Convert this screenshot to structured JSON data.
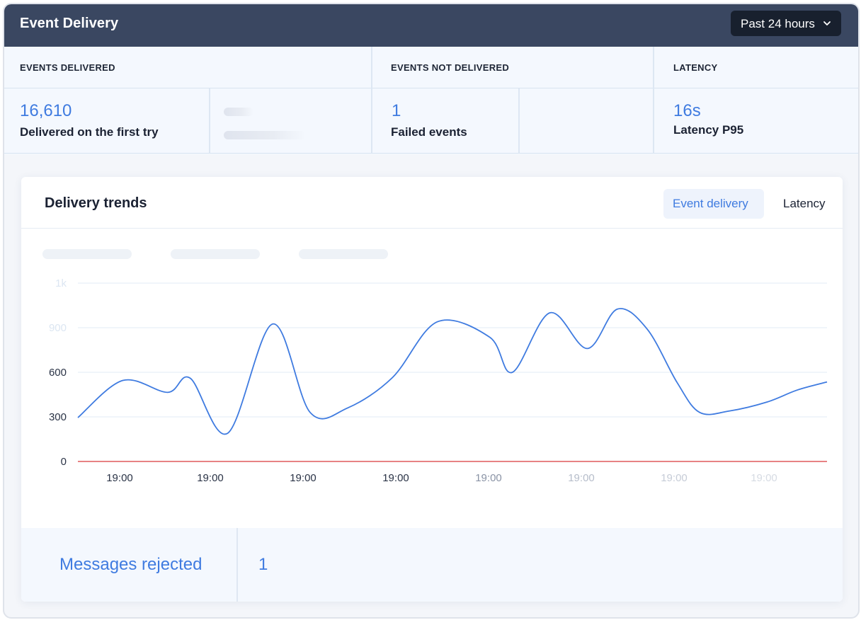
{
  "header": {
    "title": "Event Delivery",
    "time_range": "Past 24 hours"
  },
  "summary": {
    "delivered": {
      "label": "EVENTS DELIVERED",
      "value": "16,610",
      "caption": "Delivered on the first try"
    },
    "not_delivered": {
      "label": "EVENTS NOT DELIVERED",
      "value": "1",
      "caption": "Failed events"
    },
    "latency": {
      "label": "LATENCY",
      "value": "16s",
      "caption": "Latency P95"
    }
  },
  "trends": {
    "title": "Delivery trends",
    "tabs": [
      "Event delivery",
      "Latency"
    ],
    "active_tab": "Event delivery"
  },
  "rejected": {
    "label": "Messages rejected",
    "value": "1"
  },
  "chart_data": {
    "type": "line",
    "x_tick_labels": [
      "19:00",
      "19:00",
      "19:00",
      "19:00",
      "19:00",
      "19:00",
      "19:00",
      "19:00"
    ],
    "y_tick_labels": [
      "0",
      "300",
      "600",
      "900",
      "1k"
    ],
    "ylim": [
      0,
      1200
    ],
    "grid": true,
    "series": [
      {
        "color": "#3f7be0",
        "x": [
          0,
          0.06,
          0.12,
          0.15,
          0.2,
          0.26,
          0.31,
          0.36,
          0.42,
          0.48,
          0.55,
          0.58,
          0.63,
          0.68,
          0.72,
          0.76,
          0.8,
          0.83,
          0.87,
          0.92,
          0.96,
          1.0
        ],
        "values": [
          295,
          545,
          465,
          560,
          190,
          925,
          330,
          360,
          565,
          940,
          835,
          600,
          1000,
          760,
          1025,
          890,
          530,
          330,
          340,
          400,
          480,
          535
        ]
      },
      {
        "color": "#e0595b",
        "x": [
          0,
          1
        ],
        "values": [
          0,
          0
        ]
      }
    ]
  },
  "colors": {
    "accent": "#3f7be0",
    "header_bg": "#3a4761",
    "failure_line": "#e0595b"
  },
  "icons": {
    "dropdown": "chevron-down-icon"
  }
}
